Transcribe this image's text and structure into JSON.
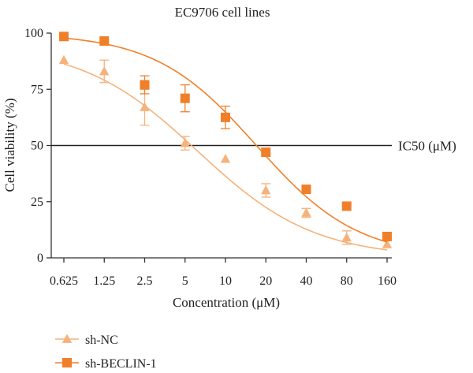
{
  "chart_data": {
    "type": "scatter",
    "title": "EC9706 cell lines",
    "xlabel": "Concentration (μM)",
    "ylabel": "Cell viability (%)",
    "x_scale": "log",
    "categories": [
      "0.625",
      "1.25",
      "2.5",
      "5",
      "10",
      "20",
      "40",
      "80",
      "160"
    ],
    "x": [
      0.625,
      1.25,
      2.5,
      5,
      10,
      20,
      40,
      80,
      160
    ],
    "ylim": [
      0,
      100
    ],
    "yticks": [
      "0",
      "25",
      "50",
      "75",
      "100"
    ],
    "grid": false,
    "legend_position": "bottom-left",
    "reference_line": {
      "y": 50,
      "label": "IC50 (μM)"
    },
    "series": [
      {
        "name": "sh-NC",
        "marker": "triangle",
        "color": "#F5B27A",
        "values": [
          88,
          83,
          67,
          51,
          44,
          30,
          20,
          9,
          6
        ],
        "errors": [
          0,
          5,
          8,
          3,
          0,
          3,
          2,
          3,
          0
        ],
        "fit": {
          "top": 95,
          "bottom": 0,
          "ic50": 6.2,
          "hill": 1.0
        }
      },
      {
        "name": "sh-BECLIN-1",
        "marker": "square",
        "color": "#F07F2A",
        "values": [
          98.5,
          96.5,
          77,
          71,
          62.5,
          47,
          30.5,
          23,
          9.5
        ],
        "errors": [
          0,
          0,
          4,
          6,
          5,
          0,
          0,
          0,
          0
        ],
        "fit": {
          "top": 100,
          "bottom": 0,
          "ic50": 17,
          "hill": 1.15
        }
      }
    ]
  }
}
